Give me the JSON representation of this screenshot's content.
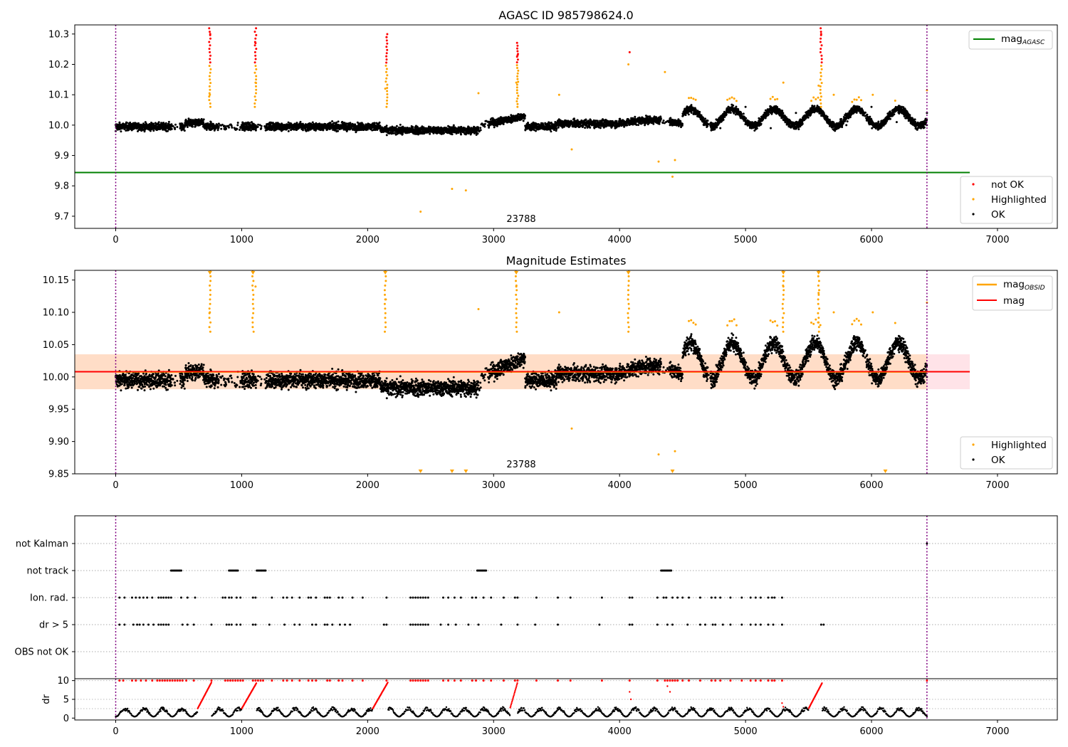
{
  "colors": {
    "ok": "#000000",
    "not_ok": "#ff0000",
    "highlighted": "#ffa500",
    "mag_agasc_line": "#008000",
    "mag_obsid": "#ffa500",
    "mag_line": "#ff0000",
    "band_fill": "#ffc0cb",
    "obsid_band_fill": "#ffdab9",
    "vline": "#800080"
  },
  "chart_data": [
    {
      "type": "scatter",
      "title": "AGASC ID 985798624.0",
      "xlim": [
        -325,
        7475
      ],
      "ylim": [
        9.66,
        10.33
      ],
      "xticks": [
        "0",
        "1000",
        "2000",
        "3000",
        "4000",
        "5000",
        "6000",
        "7000"
      ],
      "yticks": [
        "9.7",
        "9.8",
        "9.9",
        "10.0",
        "10.1",
        "10.2",
        "10.3"
      ],
      "vlines": [
        0,
        6440
      ],
      "mag_agasc": 9.844,
      "annotation": {
        "text": "23788",
        "x": 3200,
        "y": 9.68
      },
      "legend_lines": [
        {
          "label": "mag",
          "sub": "AGASC"
        }
      ],
      "legend_points": [
        "not OK",
        "Highlighted",
        "OK"
      ],
      "series": [
        {
          "name": "OK",
          "points": [
            [
              0,
              9.98
            ],
            [
              200,
              9.99
            ],
            [
              400,
              10.0
            ],
            [
              600,
              10.01
            ],
            [
              800,
              10.0
            ],
            [
              1000,
              10.0
            ],
            [
              1200,
              9.99
            ],
            [
              1400,
              10.0
            ],
            [
              1600,
              10.0
            ],
            [
              1800,
              9.99
            ],
            [
              2000,
              9.99
            ],
            [
              2200,
              9.98
            ],
            [
              2400,
              9.98
            ],
            [
              2600,
              9.98
            ],
            [
              2800,
              9.98
            ],
            [
              3000,
              10.0
            ],
            [
              3200,
              10.02
            ],
            [
              3400,
              9.99
            ],
            [
              3600,
              10.01
            ],
            [
              3800,
              9.99
            ],
            [
              4000,
              10.02
            ],
            [
              4200,
              10.0
            ],
            [
              4400,
              10.0
            ],
            [
              4600,
              10.05
            ],
            [
              4800,
              9.99
            ],
            [
              5000,
              10.06
            ],
            [
              5200,
              9.99
            ],
            [
              5400,
              10.04
            ],
            [
              5600,
              10.04
            ],
            [
              5800,
              10.0
            ],
            [
              6000,
              10.06
            ],
            [
              6200,
              10.01
            ],
            [
              6440,
              10.04
            ]
          ]
        },
        {
          "name": "Highlighted",
          "points": [
            [
              748,
              10.1
            ],
            [
              1110,
              10.14
            ],
            [
              2140,
              10.12
            ],
            [
              2880,
              10.105
            ],
            [
              3180,
              10.14
            ],
            [
              3520,
              10.1
            ],
            [
              3620,
              9.92
            ],
            [
              4070,
              10.2
            ],
            [
              4310,
              9.88
            ],
            [
              4420,
              9.83
            ],
            [
              4360,
              10.175
            ],
            [
              4440,
              9.885
            ],
            [
              2420,
              9.715
            ],
            [
              2670,
              9.79
            ],
            [
              2780,
              9.785
            ],
            [
              5300,
              10.14
            ],
            [
              5580,
              10.13
            ],
            [
              5700,
              10.1
            ],
            [
              6010,
              10.1
            ],
            [
              6440,
              10.115
            ]
          ]
        },
        {
          "name": "not OK",
          "points": [
            [
              750,
              10.3
            ],
            [
              1110,
              10.27
            ],
            [
              2150,
              10.29
            ],
            [
              3190,
              10.23
            ],
            [
              4080,
              10.24
            ],
            [
              5600,
              10.3
            ]
          ]
        }
      ]
    },
    {
      "type": "scatter",
      "title": "Magnitude Estimates",
      "xlim": [
        -325,
        7475
      ],
      "ylim": [
        9.85,
        10.165
      ],
      "xticks": [
        "0",
        "1000",
        "2000",
        "3000",
        "4000",
        "5000",
        "6000",
        "7000"
      ],
      "yticks": [
        "9.85",
        "9.90",
        "9.95",
        "10.00",
        "10.05",
        "10.10",
        "10.15"
      ],
      "vlines": [
        0,
        6440
      ],
      "mag": 10.008,
      "band": [
        9.981,
        10.035
      ],
      "annotation": {
        "text": "23788",
        "x": 3200,
        "y": 9.862
      },
      "legend_lines": [
        {
          "label": "mag",
          "sub": "OBSID"
        },
        {
          "label": "mag",
          "sub": ""
        }
      ],
      "legend_points": [
        "Highlighted",
        "OK"
      ]
    },
    {
      "type": "scatter",
      "title": "",
      "xlim": [
        -325,
        7475
      ],
      "xticks": [
        "0",
        "1000",
        "2000",
        "3000",
        "4000",
        "5000",
        "6000",
        "7000"
      ],
      "categories": [
        "not Kalman",
        "not track",
        "Ion. rad.",
        "dr > 5",
        "OBS not OK"
      ],
      "dr_ylabel": "dr",
      "dr_ylim": [
        -0.5,
        10.5
      ],
      "dr_yticks": [
        "0",
        "5",
        "10"
      ],
      "vlines": [
        0,
        6440
      ],
      "flag_ranges": {
        "not track": [
          [
            440,
            520
          ],
          [
            900,
            970
          ],
          [
            1120,
            1190
          ],
          [
            2870,
            2940
          ],
          [
            4330,
            4410
          ]
        ]
      }
    }
  ]
}
